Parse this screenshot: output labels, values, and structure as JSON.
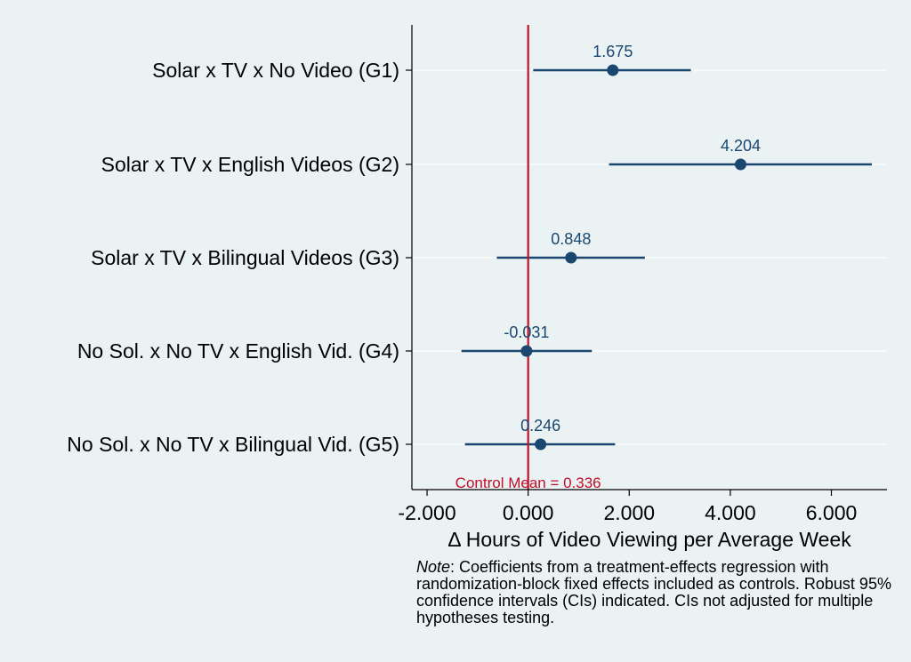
{
  "chart_data": {
    "type": "scatter",
    "orientation": "horizontal",
    "description_kind": "coefficient plot with confidence intervals",
    "categories": [
      "Solar x TV x No Video (G1)",
      "Solar x TV x English Videos (G2)",
      "Solar x TV x Bilingual Videos (G3)",
      "No Sol. x No TV x English Vid. (G4)",
      "No Sol. x No TV x Bilingual Vid. (G5)"
    ],
    "estimates": [
      1.675,
      4.204,
      0.848,
      -0.031,
      0.246
    ],
    "value_labels": [
      "1.675",
      "4.204",
      "0.848",
      "-0.031",
      "0.246"
    ],
    "ci_low": [
      0.1,
      1.6,
      -0.62,
      -1.32,
      -1.25
    ],
    "ci_high": [
      3.22,
      6.8,
      2.31,
      1.26,
      1.72
    ],
    "xticks": [
      -2,
      0,
      2,
      4,
      6
    ],
    "xtick_labels": [
      "-2.000",
      "0.000",
      "2.000",
      "4.000",
      "6.000"
    ],
    "xlim": [
      -2.3,
      7.1
    ],
    "xlabel": "Δ Hours of Video Viewing per Average Week",
    "reference_line": {
      "x": 0,
      "label": "Control Mean = 0.336",
      "color": "#c0102a"
    },
    "grid": "horizontal",
    "colors": {
      "series": "#1a476f",
      "background": "#eaf2f3",
      "grid": "#ffffff"
    }
  },
  "note": {
    "prefix": "Note",
    "text": ": Coefficients from a treatment-effects regression with randomization-block fixed effects included as controls. Robust 95% confidence intervals (CIs) indicated. CIs not adjusted for multiple hypotheses testing."
  }
}
